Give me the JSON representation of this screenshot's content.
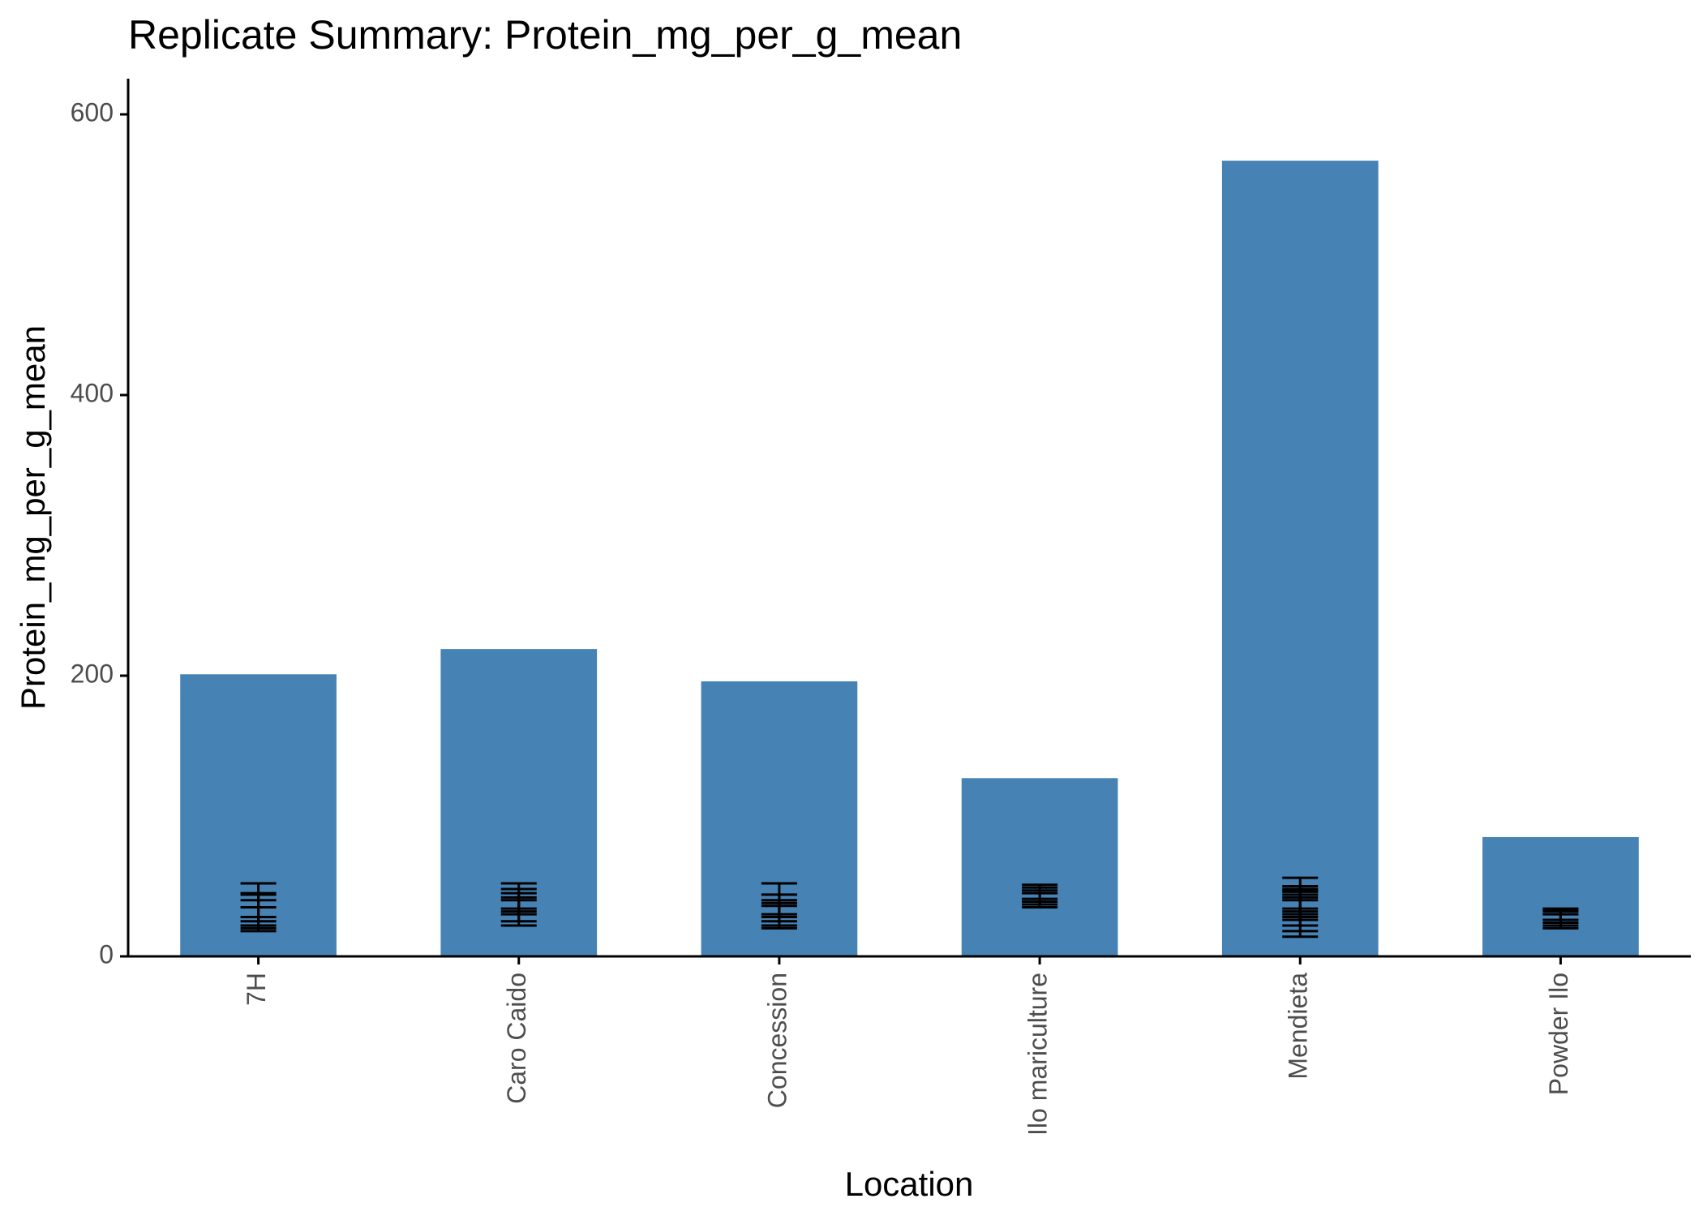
{
  "chart_data": {
    "type": "bar",
    "title": "Replicate Summary: Protein_mg_per_g_mean",
    "xlabel": "Location",
    "ylabel": "Protein_mg_per_g_mean",
    "ylim": [
      0,
      625
    ],
    "yticks": [
      0,
      200,
      400,
      600
    ],
    "grid": false,
    "legend": "none",
    "categories": [
      "7H",
      "Caro Caido",
      "Concession",
      "Ilo mariculture",
      "Mendieta",
      "Powder Ilo"
    ],
    "values": [
      201,
      219,
      196,
      127,
      567,
      85
    ],
    "replicate_error_bars": [
      [
        {
          "low": 22,
          "high": 52
        },
        {
          "low": 18,
          "high": 45
        },
        {
          "low": 25,
          "high": 40
        },
        {
          "low": 20,
          "high": 35
        },
        {
          "low": 28,
          "high": 44
        }
      ],
      [
        {
          "low": 22,
          "high": 52
        },
        {
          "low": 25,
          "high": 48
        },
        {
          "low": 30,
          "high": 42
        },
        {
          "low": 32,
          "high": 45
        },
        {
          "low": 34,
          "high": 40
        }
      ],
      [
        {
          "low": 20,
          "high": 52
        },
        {
          "low": 22,
          "high": 44
        },
        {
          "low": 25,
          "high": 38
        },
        {
          "low": 28,
          "high": 36
        },
        {
          "low": 30,
          "high": 40
        }
      ],
      [
        {
          "low": 35,
          "high": 51
        },
        {
          "low": 37,
          "high": 49
        },
        {
          "low": 39,
          "high": 47
        },
        {
          "low": 41,
          "high": 45
        }
      ],
      [
        {
          "low": 14,
          "high": 56
        },
        {
          "low": 18,
          "high": 50
        },
        {
          "low": 22,
          "high": 48
        },
        {
          "low": 26,
          "high": 47
        },
        {
          "low": 28,
          "high": 46
        },
        {
          "low": 30,
          "high": 44
        },
        {
          "low": 32,
          "high": 42
        },
        {
          "low": 34,
          "high": 40
        }
      ],
      [
        {
          "low": 20,
          "high": 34
        },
        {
          "low": 22,
          "high": 32
        },
        {
          "low": 24,
          "high": 30
        },
        {
          "low": 26,
          "high": 33
        }
      ]
    ],
    "colors": {
      "bar": "#4682B4",
      "errorbar": "#000000",
      "axis": "#000000",
      "tick_label": "#4D4D4D"
    }
  }
}
